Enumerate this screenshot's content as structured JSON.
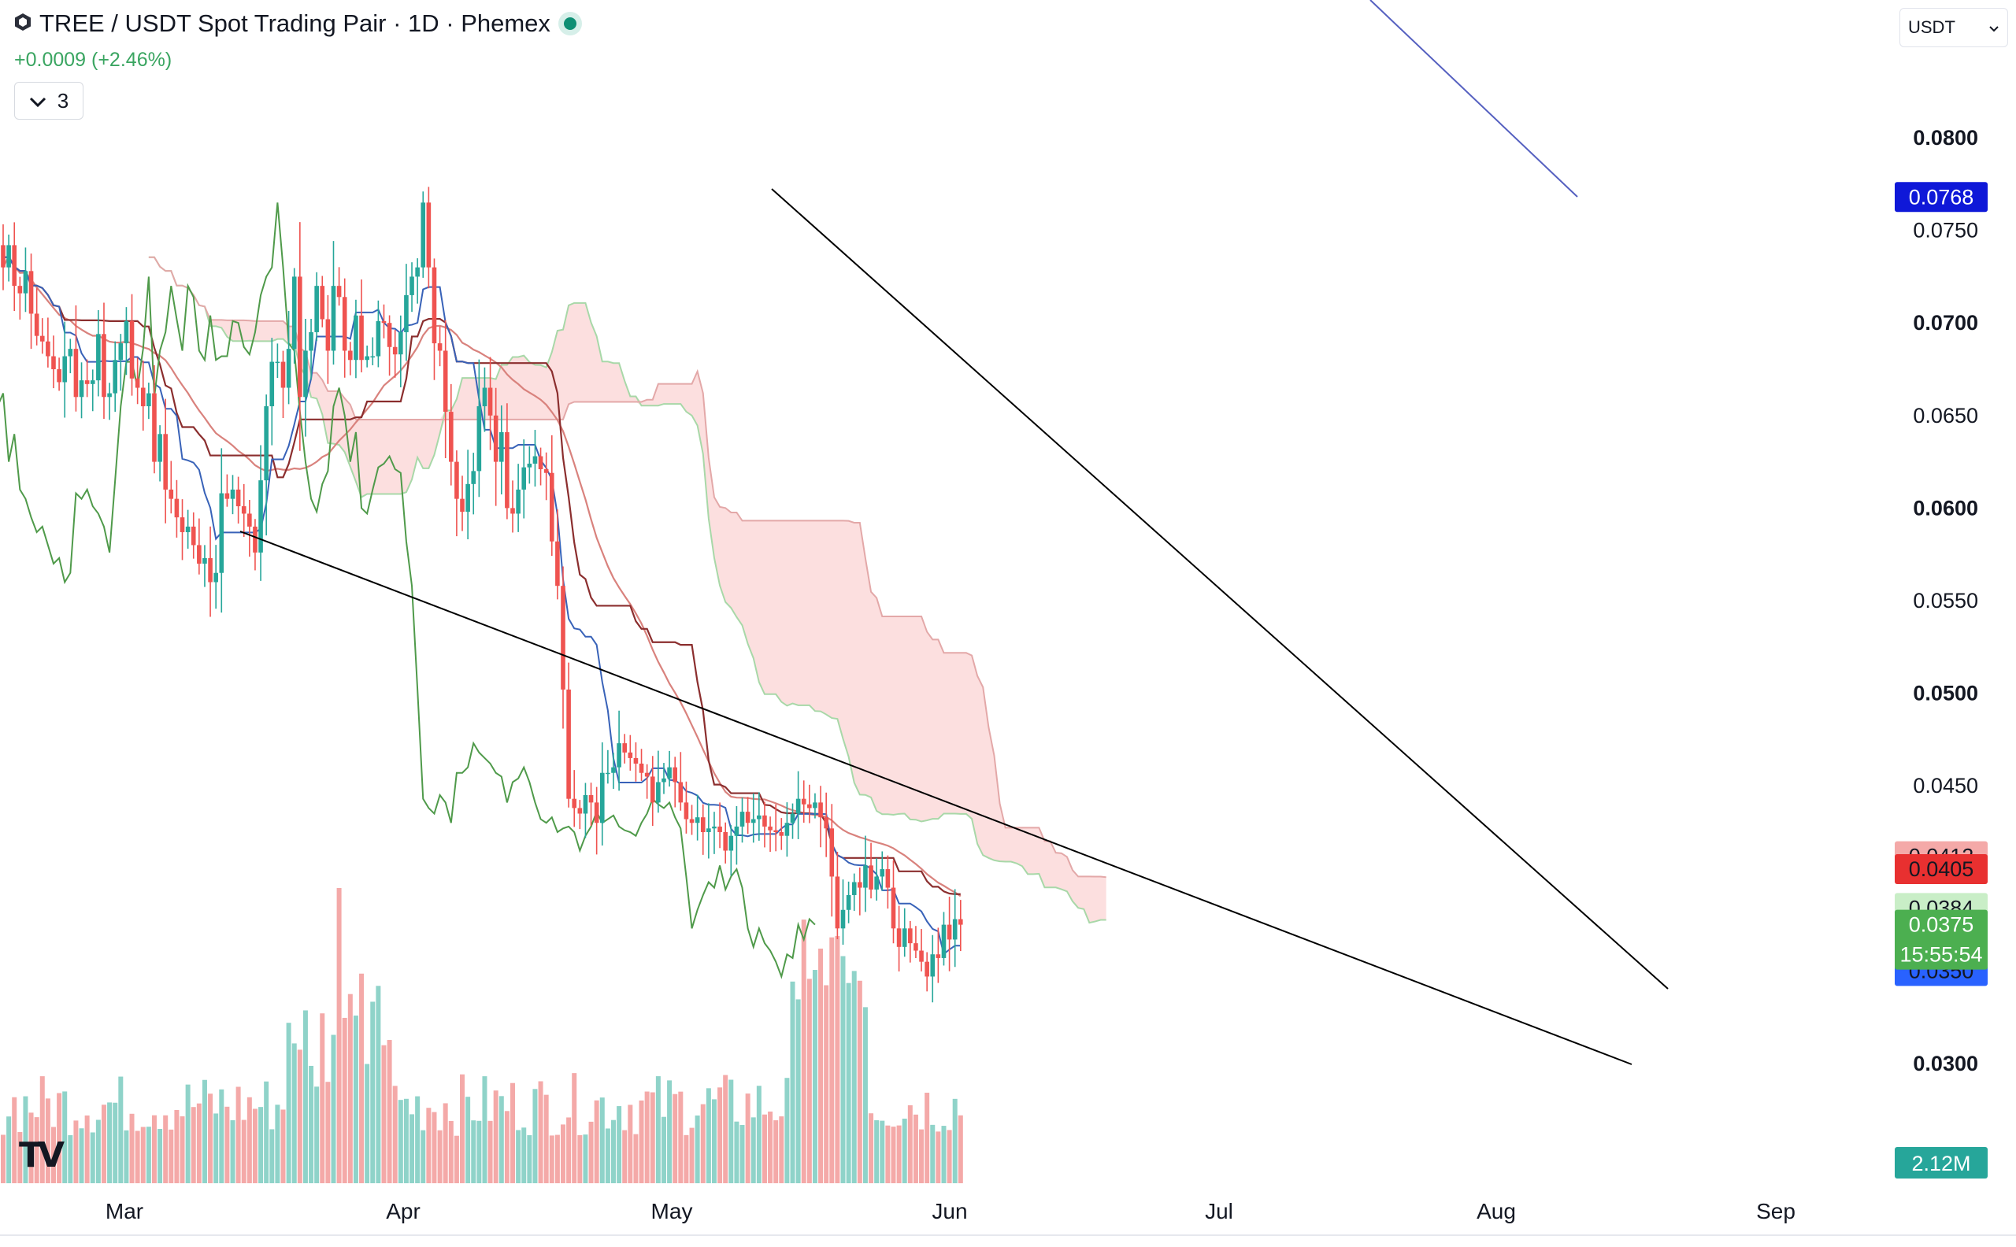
{
  "header": {
    "title": "TREE / USDT Spot Trading Pair · 1D · Phemex",
    "change": "+0.0009 (+2.46%)",
    "indicator_count": "3",
    "currency": "USDT",
    "logo_text": "TV"
  },
  "colors": {
    "up": "#26a69a",
    "down": "#ef5350",
    "volume_up": "#8fd3c9",
    "volume_down": "#f4a9a8",
    "cloud_bearish": "#fcdcdc",
    "cloud_bullish": "#d9f0dc",
    "tenkan": "#3862b8",
    "kijun": "#8b2e2e",
    "ma": "#d9827d",
    "chikou": "#4f9a4a",
    "trendline": "#000000"
  },
  "chart_data": {
    "type": "candlestick",
    "title": "TREE / USDT Spot Trading Pair · 1D · Phemex",
    "x_axis_labels": [
      "Mar",
      "Apr",
      "May",
      "Jun",
      "Jul",
      "Aug",
      "Sep"
    ],
    "y_axis_labels": [
      "0.0800",
      "0.0750",
      "0.0700",
      "0.0650",
      "0.0600",
      "0.0550",
      "0.0500",
      "0.0450",
      "0.0300"
    ],
    "ylim": [
      0.0265,
      0.0815
    ],
    "daily_close": [
      0.073,
      0.0742,
      0.072,
      0.0716,
      0.0728,
      0.0705,
      0.0693,
      0.069,
      0.0682,
      0.0675,
      0.0668,
      0.0682,
      0.0686,
      0.066,
      0.0669,
      0.0667,
      0.0669,
      0.0694,
      0.066,
      0.0662,
      0.068,
      0.0689,
      0.0701,
      0.067,
      0.0665,
      0.0655,
      0.0662,
      0.0625,
      0.064,
      0.061,
      0.0605,
      0.0595,
      0.0587,
      0.059,
      0.058,
      0.057,
      0.0573,
      0.056,
      0.0565,
      0.0608,
      0.0605,
      0.061,
      0.0601,
      0.0597,
      0.059,
      0.0576,
      0.0615,
      0.0655,
      0.0679,
      0.0679,
      0.0665,
      0.0686,
      0.0725,
      0.066,
      0.0685,
      0.0695,
      0.072,
      0.0702,
      0.0685,
      0.072,
      0.0714,
      0.0685,
      0.068,
      0.0704,
      0.068,
      0.0682,
      0.0682,
      0.0701,
      0.07,
      0.0687,
      0.0683,
      0.0695,
      0.0715,
      0.0725,
      0.073,
      0.0765,
      0.073,
      0.0689,
      0.0685,
      0.0652,
      0.0625,
      0.0605,
      0.0598,
      0.0613,
      0.062,
      0.0655,
      0.0665,
      0.065,
      0.0625,
      0.0641,
      0.06,
      0.0597,
      0.061,
      0.0622,
      0.0624,
      0.0628,
      0.0621,
      0.0619,
      0.0582,
      0.0558,
      0.0502,
      0.0443,
      0.0438,
      0.0435,
      0.0445,
      0.0441,
      0.043,
      0.0457,
      0.0457,
      0.046,
      0.0473,
      0.0468,
      0.0465,
      0.0462,
      0.0457,
      0.0455,
      0.0441,
      0.0452,
      0.0454,
      0.046,
      0.0452,
      0.0441,
      0.0432,
      0.043,
      0.0433,
      0.0425,
      0.0427,
      0.0428,
      0.0425,
      0.0415,
      0.0423,
      0.0428,
      0.0436,
      0.043,
      0.0432,
      0.0434,
      0.0428,
      0.0426,
      0.0425,
      0.0423,
      0.043,
      0.0435,
      0.0443,
      0.044,
      0.0438,
      0.0441,
      0.0433,
      0.0427,
      0.0401,
      0.0373,
      0.0383,
      0.0391,
      0.0398,
      0.0395,
      0.0407,
      0.0394,
      0.0401,
      0.0405,
      0.0395,
      0.0373,
      0.0363,
      0.0373,
      0.0365,
      0.0361,
      0.0355,
      0.0347,
      0.0359,
      0.0357,
      0.0375,
      0.0367,
      0.0378,
      0.0375
    ],
    "overlays": {
      "tenkan_sen_line": "blue",
      "kijun_sen_line": "dark-red",
      "moving_average_line": "light-red",
      "chikou_span_line": "green",
      "ichimoku_cloud": "red (bearish)"
    },
    "trendlines": [
      {
        "name": "upper falling trendline",
        "from": [
          "May",
          0.0767
        ],
        "to": [
          "Aug",
          0.0341
        ]
      },
      {
        "name": "lower falling trendline",
        "from": [
          "Mar",
          0.0589
        ],
        "to": [
          "Aug",
          0.03
        ]
      }
    ],
    "price_labels": [
      {
        "value": "0.0768",
        "color": "#0f18d8",
        "text_color": "#ffffff"
      },
      {
        "value": "0.0412",
        "color": "#f4a9a8",
        "text_color": "#131722"
      },
      {
        "value": "0.0405",
        "color": "#e83030",
        "text_color": "#131722"
      },
      {
        "value": "0.0384",
        "color": "#c9eec7",
        "text_color": "#131722"
      },
      {
        "value": "0.0350",
        "color": "#2962ff",
        "text_color": "#131722"
      },
      {
        "value": "0.0375",
        "sub": "15:55:54",
        "color": "#4caf50",
        "text_color": "#ffffff"
      }
    ],
    "volume_label": "2.12M",
    "volume_label_color": "#26a69a"
  }
}
